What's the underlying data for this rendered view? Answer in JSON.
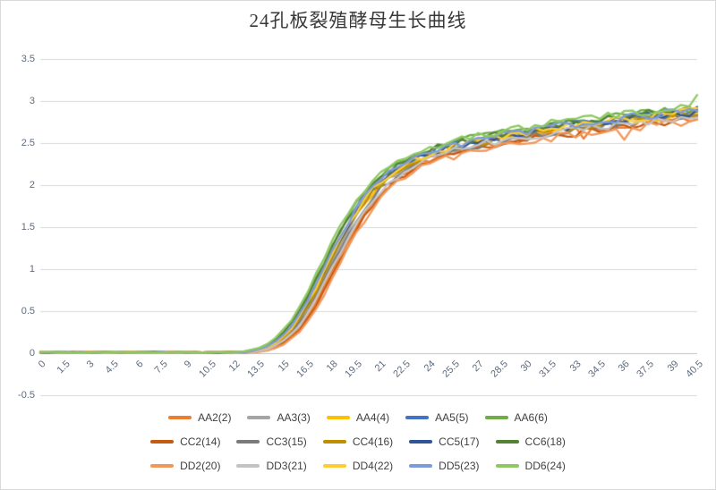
{
  "title": "24孔板裂殖酵母生长曲线",
  "colors": {
    "background": "#ffffff",
    "chart_border": "#d9d9d9",
    "gridline": "#d9d9d9",
    "axis_line": "#c0c0c0",
    "tick_label": "#5f6b7c",
    "legend_text": "#404040",
    "title_text": "#383838"
  },
  "chart_data": {
    "type": "line",
    "title": "24孔板裂殖酵母生长曲线",
    "xlabel": "",
    "ylabel": "",
    "xlim": [
      0,
      40.5
    ],
    "ylim": [
      -0.5,
      3.5
    ],
    "grid": "horizontal",
    "legend_position": "bottom",
    "legend_rows": 3,
    "y_ticks": [
      3.5,
      3,
      2.5,
      2,
      1.5,
      1,
      0.5,
      0,
      -0.5
    ],
    "x_ticks": [
      0,
      1.5,
      3,
      4.5,
      6,
      7.5,
      9,
      10.5,
      12,
      13.5,
      15,
      16.5,
      18,
      19.5,
      21,
      22.5,
      24,
      25.5,
      27,
      28.5,
      30,
      31.5,
      33,
      34.5,
      36,
      37.5,
      39,
      40.5
    ],
    "x_start": 0,
    "x_step": 0.5,
    "n_points": 82,
    "base_values": [
      0.01,
      0.01,
      0.01,
      0.01,
      0.01,
      0.01,
      0.01,
      0.01,
      0.01,
      0.01,
      0.01,
      0.01,
      0.01,
      0.01,
      0.01,
      0.01,
      0.01,
      0.01,
      0.01,
      0.01,
      0.01,
      0.01,
      0.01,
      0.01,
      0.01,
      0.01,
      0.02,
      0.04,
      0.07,
      0.12,
      0.19,
      0.29,
      0.42,
      0.58,
      0.76,
      0.95,
      1.14,
      1.33,
      1.5,
      1.66,
      1.8,
      1.92,
      2.02,
      2.1,
      2.17,
      2.23,
      2.28,
      2.32,
      2.36,
      2.39,
      2.42,
      2.45,
      2.47,
      2.49,
      2.51,
      2.53,
      2.55,
      2.57,
      2.58,
      2.6,
      2.61,
      2.63,
      2.64,
      2.66,
      2.67,
      2.68,
      2.7,
      2.71,
      2.72,
      2.73,
      2.74,
      2.76,
      2.77,
      2.78,
      2.79,
      2.8,
      2.81,
      2.82,
      2.83,
      2.84,
      2.85,
      2.87
    ],
    "series": [
      {
        "name": "AA2(2)",
        "color": "#ED7D31",
        "shift_h": 0.4,
        "scale": 0.985,
        "seed": 11,
        "events": [
          {
            "i": 67,
            "dv": -0.08
          }
        ]
      },
      {
        "name": "AA3(3)",
        "color": "#A5A5A5",
        "shift_h": 0.1,
        "scale": 0.995,
        "seed": 12,
        "events": []
      },
      {
        "name": "AA4(4)",
        "color": "#FFC000",
        "shift_h": 0.0,
        "scale": 1.0,
        "seed": 13,
        "events": []
      },
      {
        "name": "AA5(5)",
        "color": "#4472C4",
        "shift_h": -0.1,
        "scale": 1.01,
        "seed": 14,
        "events": [
          {
            "i": 65,
            "dv": 0.08
          }
        ]
      },
      {
        "name": "AA6(6)",
        "color": "#70AD47",
        "shift_h": -0.3,
        "scale": 1.02,
        "seed": 15,
        "events": []
      },
      {
        "name": "CC2(14)",
        "color": "#C55A11",
        "shift_h": 0.5,
        "scale": 0.975,
        "seed": 16,
        "events": []
      },
      {
        "name": "CC3(15)",
        "color": "#7B7B7B",
        "shift_h": 0.2,
        "scale": 0.99,
        "seed": 17,
        "events": []
      },
      {
        "name": "CC4(16)",
        "color": "#BF8F00",
        "shift_h": 0.05,
        "scale": 1.0,
        "seed": 18,
        "events": []
      },
      {
        "name": "CC5(17)",
        "color": "#2F5597",
        "shift_h": -0.05,
        "scale": 1.005,
        "seed": 19,
        "events": []
      },
      {
        "name": "CC6(18)",
        "color": "#548235",
        "shift_h": -0.25,
        "scale": 1.015,
        "seed": 20,
        "events": []
      },
      {
        "name": "DD2(20)",
        "color": "#F1975A",
        "shift_h": 0.6,
        "scale": 0.97,
        "seed": 21,
        "events": [
          {
            "i": 72,
            "dv": -0.12
          }
        ]
      },
      {
        "name": "DD3(21)",
        "color": "#C3C3C3",
        "shift_h": 0.3,
        "scale": 0.99,
        "seed": 22,
        "events": []
      },
      {
        "name": "DD4(22)",
        "color": "#FFCD33",
        "shift_h": -0.05,
        "scale": 1.005,
        "seed": 23,
        "events": []
      },
      {
        "name": "DD5(23)",
        "color": "#7D9BDB",
        "shift_h": -0.15,
        "scale": 1.01,
        "seed": 24,
        "events": []
      },
      {
        "name": "DD6(24)",
        "color": "#8FC862",
        "shift_h": -0.4,
        "scale": 1.025,
        "seed": 25,
        "events": [
          {
            "i": 81,
            "dv": 0.09
          }
        ]
      }
    ]
  }
}
